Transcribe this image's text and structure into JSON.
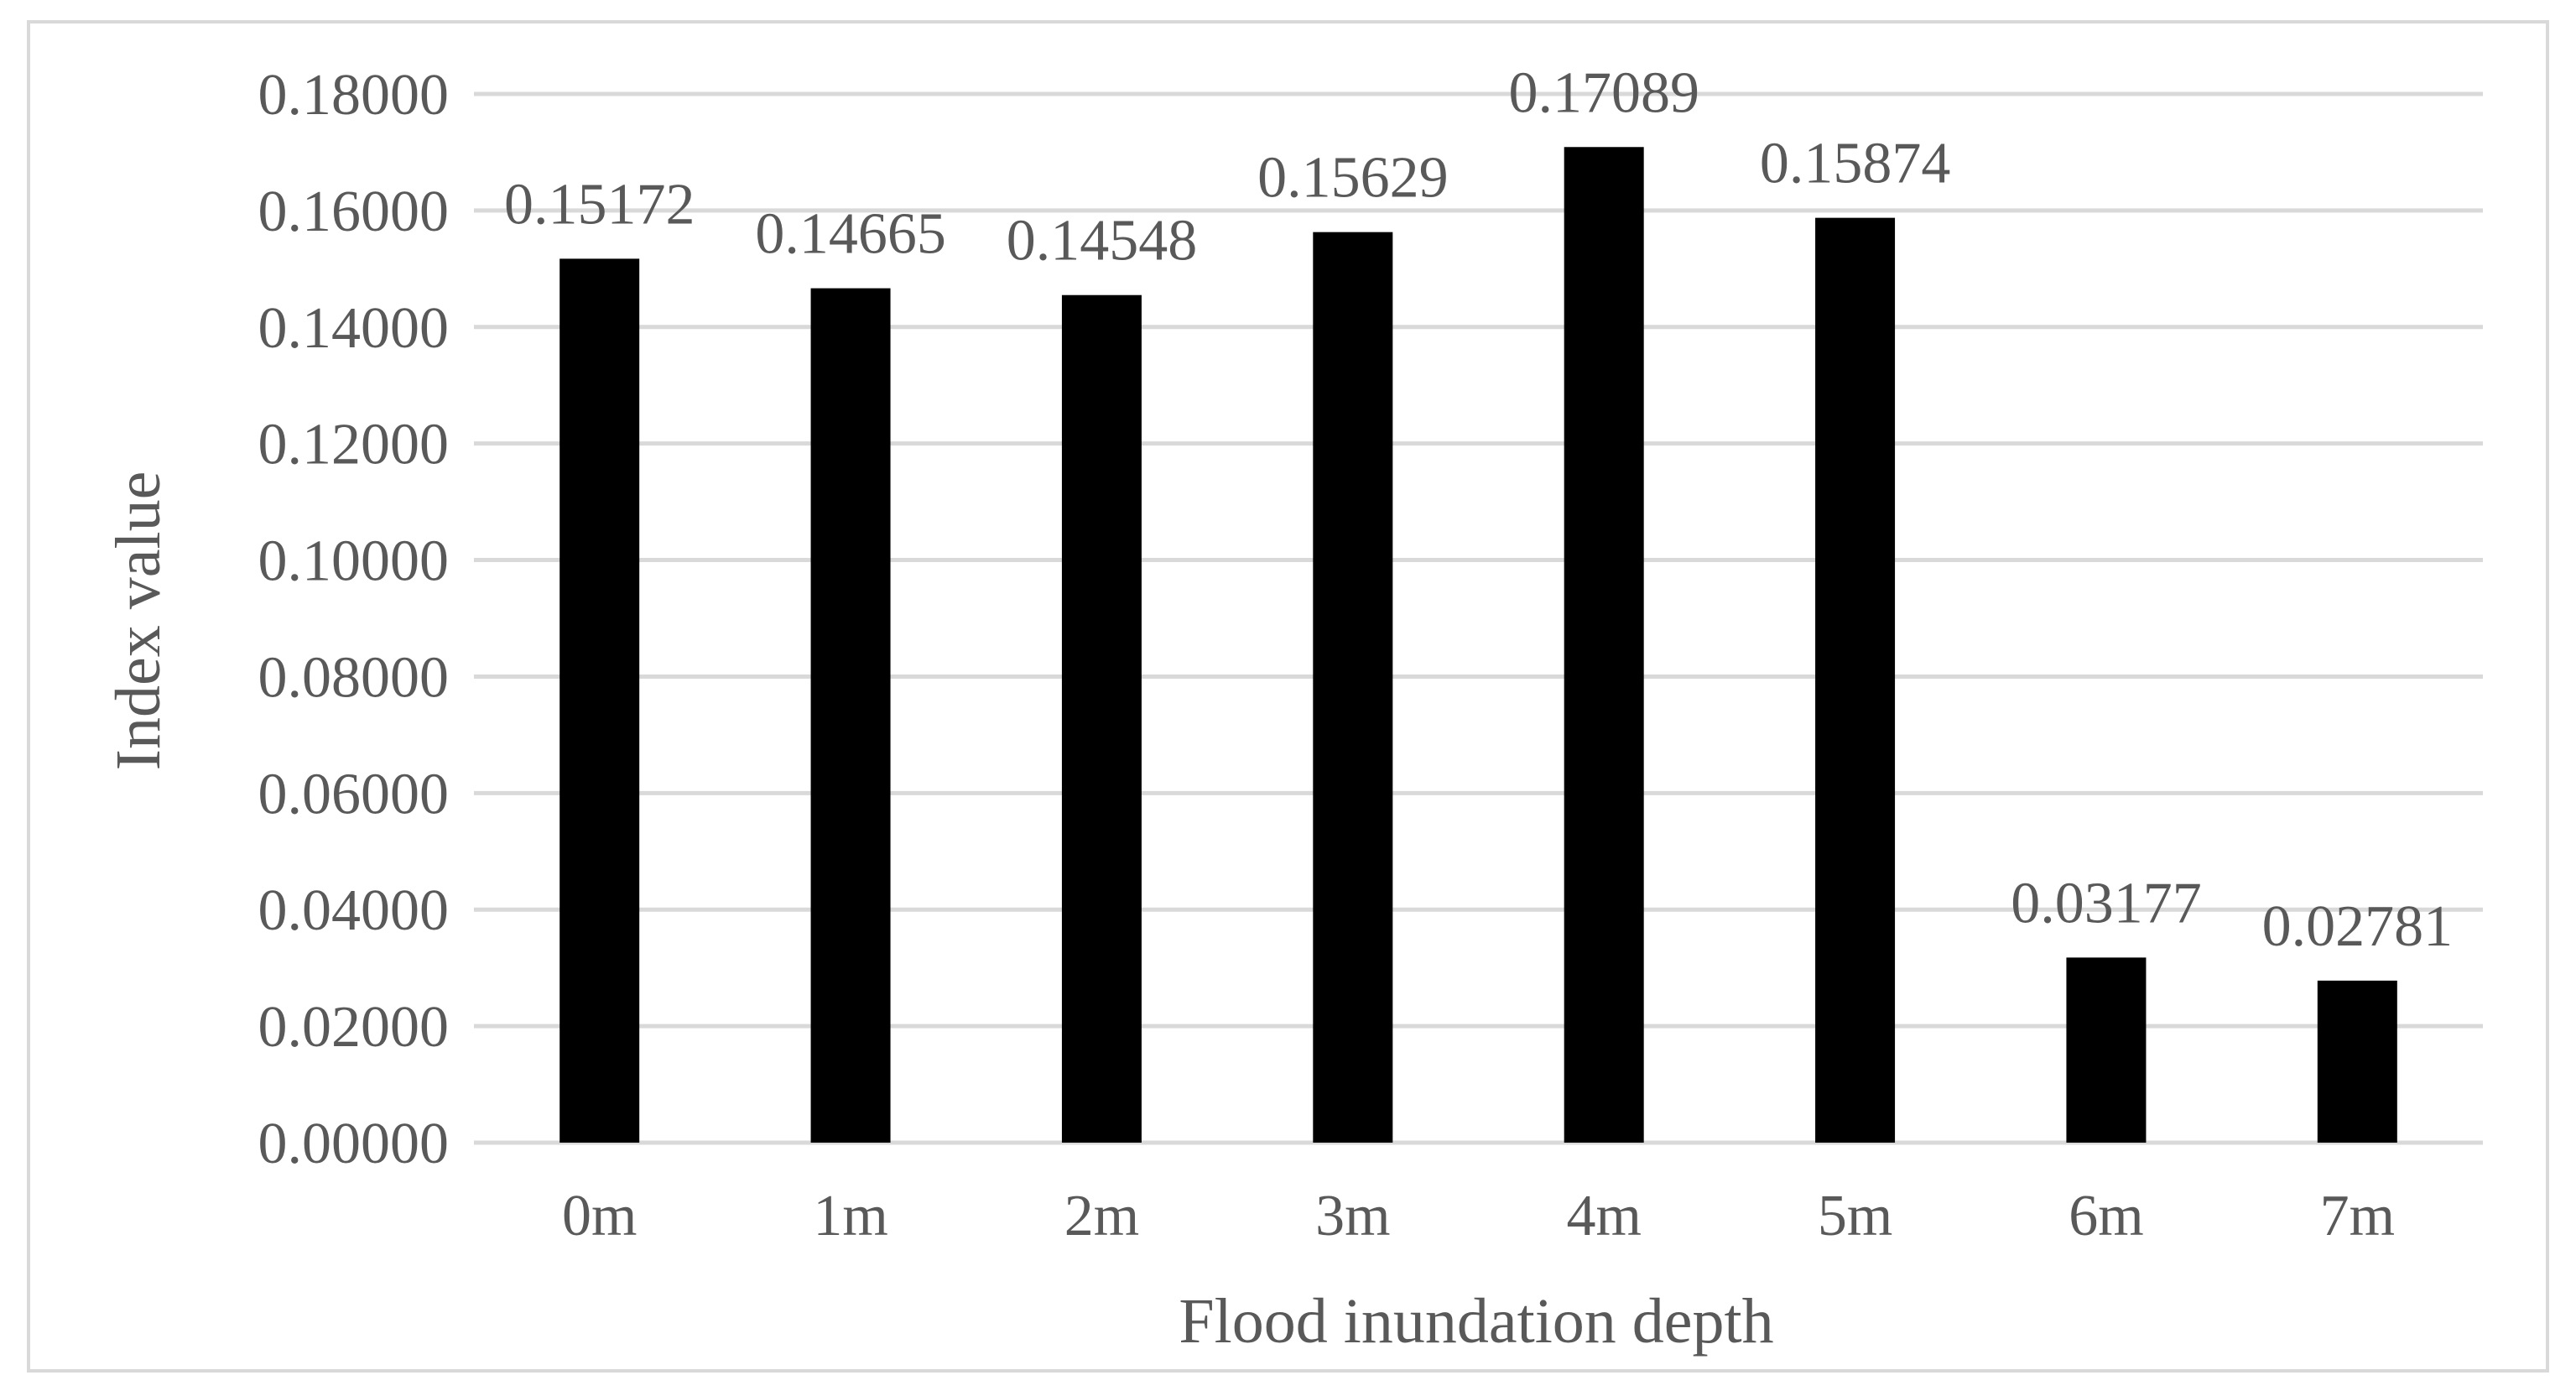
{
  "chart_data": {
    "type": "bar",
    "title": "",
    "xlabel": "Flood inundation depth",
    "ylabel": "Index value",
    "categories": [
      "0m",
      "1m",
      "2m",
      "3m",
      "4m",
      "5m",
      "6m",
      "7m"
    ],
    "values": [
      0.15172,
      0.14665,
      0.14548,
      0.15629,
      0.17089,
      0.15874,
      0.03177,
      0.02781
    ],
    "value_labels": [
      "0.15172",
      "0.14665",
      "0.14548",
      "0.15629",
      "0.17089",
      "0.15874",
      "0.03177",
      "0.02781"
    ],
    "ylim": [
      0,
      0.18
    ],
    "yticks": [
      0,
      0.02,
      0.04,
      0.06,
      0.08,
      0.1,
      0.12,
      0.14,
      0.16,
      0.18
    ],
    "ytick_labels": [
      "0.00000",
      "0.02000",
      "0.04000",
      "0.06000",
      "0.08000",
      "0.10000",
      "0.12000",
      "0.14000",
      "0.16000",
      "0.18000"
    ],
    "grid": true,
    "legend": "none",
    "colors": {
      "bar": "#000000",
      "grid": "#d9d9d9",
      "text": "#595959",
      "border": "#d9d9d9"
    }
  }
}
